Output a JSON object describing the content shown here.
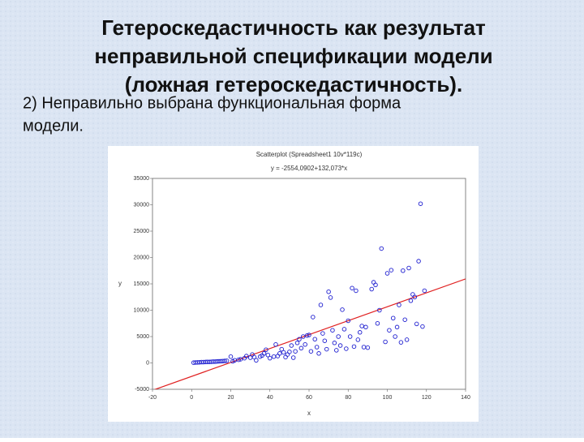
{
  "slide": {
    "title": [
      "Гетероскедастичность как результат",
      "неправильной спецификации модели",
      "(ложная гетероскедастичность)."
    ],
    "text": [
      "2) Неправильно выбрана функциональная форма",
      "модели."
    ]
  },
  "chart_data": {
    "type": "scatter",
    "title": "Scatterplot (Spreadsheet1 10v*119c)",
    "subtitle": "y = -2554,0902+132,073*x",
    "x_label": "x",
    "y_label": "y",
    "color": "#1f1fd0",
    "grid": false,
    "fit": {
      "intercept": -2554.0902,
      "slope": 132.073,
      "color": "#e02020"
    },
    "xlim": [
      -20,
      140
    ],
    "xticks": [
      -20,
      0,
      20,
      40,
      60,
      80,
      100,
      120,
      140
    ],
    "ylim": [
      -5000,
      35000
    ],
    "yticks": [
      -5000,
      0,
      5000,
      10000,
      15000,
      20000,
      25000,
      30000,
      35000
    ],
    "x": [
      1,
      2,
      3,
      4,
      5,
      6,
      7,
      8,
      9,
      10,
      11,
      12,
      13,
      14,
      15,
      16,
      17,
      18,
      20,
      21,
      22,
      24,
      25,
      27,
      28,
      30,
      31,
      32,
      33,
      35,
      36,
      37,
      38,
      39,
      40,
      42,
      43,
      44,
      45,
      46,
      47,
      48,
      49,
      50,
      51,
      52,
      53,
      54,
      55,
      56,
      57,
      58,
      59,
      60,
      61,
      62,
      63,
      64,
      65,
      66,
      67,
      68,
      69,
      70,
      71,
      72,
      73,
      74,
      75,
      76,
      77,
      78,
      79,
      80,
      81,
      82,
      83,
      84,
      85,
      86,
      87,
      88,
      89,
      90,
      92,
      93,
      94,
      95,
      96,
      97,
      99,
      100,
      101,
      102,
      103,
      104,
      105,
      106,
      107,
      108,
      109,
      110,
      111,
      112,
      113,
      114,
      115,
      116,
      117,
      118,
      119
    ],
    "values": [
      50,
      80,
      100,
      120,
      150,
      150,
      180,
      200,
      200,
      220,
      250,
      250,
      280,
      300,
      320,
      350,
      380,
      400,
      1200,
      300,
      500,
      600,
      700,
      900,
      1300,
      1000,
      1600,
      1100,
      500,
      1200,
      1400,
      1800,
      2500,
      1500,
      900,
      1200,
      3500,
      1300,
      1800,
      2600,
      2000,
      1100,
      1600,
      2100,
      3300,
      1000,
      2200,
      3800,
      4500,
      2800,
      5000,
      3500,
      5200,
      5300,
      2200,
      8700,
      4500,
      3000,
      1800,
      11000,
      5600,
      4200,
      2600,
      13500,
      12400,
      6200,
      3800,
      2400,
      5000,
      3300,
      10100,
      6400,
      2700,
      8000,
      5000,
      14200,
      3100,
      13700,
      4400,
      5800,
      7000,
      3000,
      6800,
      2900,
      14000,
      15300,
      14800,
      7500,
      10000,
      21700,
      4000,
      17000,
      6200,
      17600,
      8500,
      5000,
      6800,
      11000,
      3900,
      17500,
      8200,
      4400,
      18000,
      11800,
      13000,
      12500,
      7400,
      19300,
      30200,
      6900,
      13700
    ]
  }
}
